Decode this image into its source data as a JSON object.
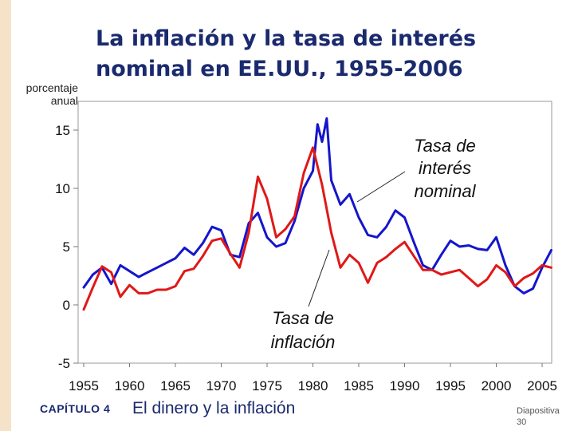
{
  "slide": {
    "title_line1": "La inflación y la tasa de interés",
    "title_line2": "nominal en EE.UU., 1955-2006",
    "chapter": "CAPÍTULO 4",
    "topic": "El dinero y la inflación",
    "slide_label": "Diapositiva",
    "slide_number": "30"
  },
  "colors": {
    "nominal": "#1515cc",
    "inflation": "#e01818",
    "sidebar": "#f5e2c8",
    "title": "#1a2a6e"
  },
  "chart_data": {
    "type": "line",
    "title": "La inflación y la tasa de interés nominal en EE.UU., 1955-2006",
    "ylabel_line1": "porcentaje",
    "ylabel_line2": "anual",
    "xlabel": "",
    "xlim": [
      1955,
      2006.5
    ],
    "ylim": [
      -5,
      16.5
    ],
    "x_ticks": [
      "1955",
      "1960",
      "1965",
      "1970",
      "1975",
      "1980",
      "1985",
      "1990",
      "1995",
      "2000",
      "2005"
    ],
    "y_ticks": [
      "15",
      "10",
      "5",
      "0",
      "-5"
    ],
    "annotations": {
      "nominal_line1": "Tasa de",
      "nominal_line2": "interés",
      "nominal_line3": "nominal",
      "inflation_line1": "Tasa de",
      "inflation_line2": "inflación"
    },
    "series": [
      {
        "name": "Tasa de interés nominal",
        "x": [
          1955,
          1956,
          1957,
          1958,
          1959,
          1960,
          1961,
          1962,
          1963,
          1964,
          1965,
          1966,
          1967,
          1968,
          1969,
          1970,
          1971,
          1972,
          1973,
          1974,
          1975,
          1976,
          1977,
          1978,
          1979,
          1980,
          1980.5,
          1981,
          1981.5,
          1982,
          1983,
          1984,
          1985,
          1986,
          1987,
          1988,
          1989,
          1990,
          1991,
          1992,
          1993,
          1994,
          1995,
          1996,
          1997,
          1998,
          1999,
          2000,
          2001,
          2002,
          2003,
          2004,
          2005,
          2006
        ],
        "values": [
          1.5,
          2.6,
          3.2,
          1.8,
          3.4,
          2.9,
          2.4,
          2.8,
          3.2,
          3.6,
          4.0,
          4.9,
          4.3,
          5.3,
          6.7,
          6.4,
          4.3,
          4.1,
          7.0,
          7.9,
          5.8,
          5.0,
          5.3,
          7.2,
          10.0,
          11.5,
          15.5,
          14.0,
          16.0,
          10.7,
          8.6,
          9.5,
          7.5,
          6.0,
          5.8,
          6.7,
          8.1,
          7.5,
          5.4,
          3.4,
          3.0,
          4.3,
          5.5,
          5.0,
          5.1,
          4.8,
          4.7,
          5.8,
          3.4,
          1.6,
          1.0,
          1.4,
          3.2,
          4.7
        ]
      },
      {
        "name": "Tasa de inflación",
        "x": [
          1955,
          1956,
          1957,
          1958,
          1959,
          1960,
          1961,
          1962,
          1963,
          1964,
          1965,
          1966,
          1967,
          1968,
          1969,
          1970,
          1971,
          1972,
          1973,
          1974,
          1975,
          1976,
          1977,
          1978,
          1979,
          1980,
          1981,
          1982,
          1983,
          1984,
          1985,
          1986,
          1987,
          1988,
          1989,
          1990,
          1991,
          1992,
          1993,
          1994,
          1995,
          1996,
          1997,
          1998,
          1999,
          2000,
          2001,
          2002,
          2003,
          2004,
          2005,
          2006
        ],
        "values": [
          -0.4,
          1.5,
          3.3,
          2.8,
          0.7,
          1.7,
          1.0,
          1.0,
          1.3,
          1.3,
          1.6,
          2.9,
          3.1,
          4.2,
          5.5,
          5.7,
          4.4,
          3.2,
          6.2,
          11.0,
          9.1,
          5.8,
          6.5,
          7.6,
          11.3,
          13.5,
          10.3,
          6.2,
          3.2,
          4.3,
          3.6,
          1.9,
          3.6,
          4.1,
          4.8,
          5.4,
          4.2,
          3.0,
          3.0,
          2.6,
          2.8,
          3.0,
          2.3,
          1.6,
          2.2,
          3.4,
          2.8,
          1.6,
          2.3,
          2.7,
          3.4,
          3.2
        ]
      }
    ]
  }
}
